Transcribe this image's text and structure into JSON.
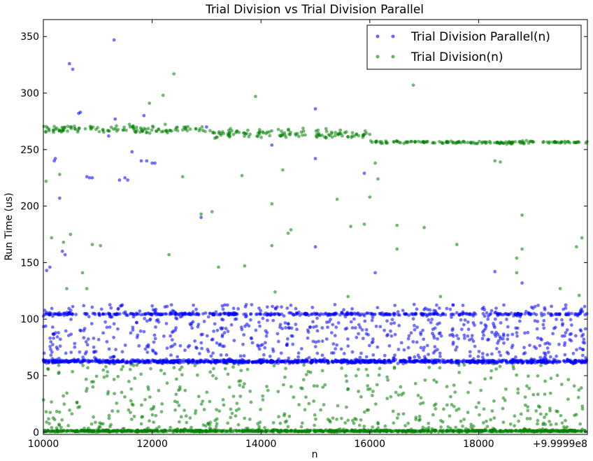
{
  "chart_data": {
    "type": "scatter",
    "title": "Trial Division vs Trial Division Parallel",
    "xlabel": "n",
    "ylabel": "Run Time (us)",
    "x_offset_label": "+9.9999e8",
    "xlim": [
      10000,
      20000
    ],
    "ylim": [
      -2,
      365
    ],
    "x_ticks": [
      10000,
      12000,
      14000,
      16000,
      18000
    ],
    "x_tick_labels": [
      "10000",
      "12000",
      "14000",
      "16000",
      "18000"
    ],
    "y_ticks": [
      0,
      50,
      100,
      150,
      200,
      250,
      300,
      350
    ],
    "y_tick_labels": [
      "0",
      "50",
      "100",
      "150",
      "200",
      "250",
      "300",
      "350"
    ],
    "grid": false,
    "legend_position": "top-right",
    "series": [
      {
        "name": "Trial Division Parallel(n)",
        "color": "#0000ff",
        "bands": [
          {
            "y": 62.5,
            "count": 1000,
            "spread": 1.8
          },
          {
            "y": 104.5,
            "count": 400,
            "spread": 1.2
          }
        ],
        "scatter_count": 700,
        "points": [
          [
            10480,
            326
          ],
          [
            10540,
            321
          ],
          [
            11300,
            347
          ],
          [
            10680,
            283
          ],
          [
            10900,
            225
          ],
          [
            10800,
            226
          ],
          [
            10850,
            225
          ],
          [
            11400,
            223
          ],
          [
            11500,
            225
          ],
          [
            11550,
            223
          ],
          [
            11800,
            240
          ],
          [
            11900,
            240
          ],
          [
            12000,
            238
          ],
          [
            12050,
            238
          ],
          [
            10650,
            282
          ],
          [
            11850,
            280
          ],
          [
            13000,
            270
          ],
          [
            14200,
            254
          ],
          [
            15000,
            286
          ],
          [
            15000,
            164
          ],
          [
            15000,
            242
          ],
          [
            15900,
            229
          ],
          [
            16100,
            141
          ],
          [
            18300,
            142
          ],
          [
            18800,
            132
          ],
          [
            10200,
            240
          ],
          [
            10220,
            242
          ],
          [
            10300,
            207
          ],
          [
            10350,
            160
          ],
          [
            10400,
            157
          ],
          [
            10120,
            146
          ],
          [
            10060,
            143
          ],
          [
            11200,
            262
          ],
          [
            11320,
            277
          ],
          [
            11630,
            248
          ],
          [
            12400,
            107
          ],
          [
            12520,
            102
          ],
          [
            12900,
            190
          ],
          [
            13200,
            90
          ],
          [
            14100,
            85
          ],
          [
            14500,
            96
          ],
          [
            15300,
            88
          ],
          [
            16400,
            85
          ],
          [
            17200,
            92
          ],
          [
            17800,
            85
          ],
          [
            18100,
            90
          ],
          [
            18700,
            88
          ],
          [
            19200,
            92
          ],
          [
            19600,
            88
          ],
          [
            19900,
            85
          ]
        ]
      },
      {
        "name": "Trial Division(n)",
        "color": "#008000",
        "bands": [
          {
            "y": 1.0,
            "count": 1000,
            "spread": 1.0
          }
        ],
        "upper_band_points": 400,
        "scatter_count": 500,
        "points": [
          [
            12400,
            317
          ],
          [
            16800,
            307
          ],
          [
            13900,
            297
          ],
          [
            11950,
            291
          ],
          [
            12200,
            298
          ],
          [
            13100,
            195
          ],
          [
            12900,
            193
          ],
          [
            13650,
            227
          ],
          [
            12560,
            226
          ],
          [
            14400,
            232
          ],
          [
            14200,
            202
          ],
          [
            15400,
            206
          ],
          [
            15650,
            182
          ],
          [
            15900,
            184
          ],
          [
            16000,
            208
          ],
          [
            16100,
            238
          ],
          [
            16150,
            224
          ],
          [
            16500,
            183
          ],
          [
            16500,
            162
          ],
          [
            17000,
            181
          ],
          [
            18300,
            240
          ],
          [
            18400,
            239
          ],
          [
            18800,
            192
          ],
          [
            19900,
            172
          ],
          [
            19800,
            164
          ],
          [
            11050,
            165
          ],
          [
            10430,
            127
          ],
          [
            10720,
            141
          ],
          [
            10800,
            127
          ],
          [
            10500,
            175
          ],
          [
            10900,
            166
          ],
          [
            12310,
            157
          ],
          [
            13220,
            146
          ],
          [
            13700,
            147
          ],
          [
            14200,
            165
          ],
          [
            14500,
            176
          ],
          [
            14550,
            179
          ],
          [
            14260,
            124
          ],
          [
            15600,
            120
          ],
          [
            17300,
            120
          ],
          [
            17600,
            166
          ],
          [
            18800,
            162
          ],
          [
            18700,
            154
          ],
          [
            18700,
            141
          ],
          [
            19500,
            127
          ],
          [
            19850,
            121
          ],
          [
            10150,
            172
          ],
          [
            10370,
            168
          ],
          [
            10050,
            222
          ],
          [
            10300,
            228
          ]
        ]
      }
    ]
  }
}
